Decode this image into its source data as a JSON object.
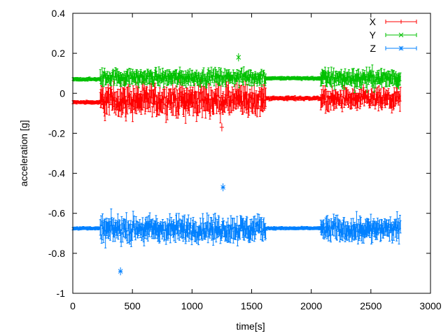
{
  "chart_data": {
    "type": "scatter",
    "style": "errorbars",
    "xlabel": "time[s]",
    "ylabel": "acceleration [g]",
    "xlim": [
      0,
      3000
    ],
    "ylim": [
      -1,
      0.4
    ],
    "xticks": [
      "0",
      "500",
      "1000",
      "1500",
      "2000",
      "2500",
      "3000"
    ],
    "yticks": [
      "-1",
      "-0.8",
      "-0.6",
      "-0.4",
      "-0.2",
      "0",
      "0.2",
      "0.4"
    ],
    "xtick_values": [
      0,
      500,
      1000,
      1500,
      2000,
      2500,
      3000
    ],
    "ytick_values": [
      -1,
      -0.8,
      -0.6,
      -0.4,
      -0.2,
      0,
      0.2,
      0.4
    ],
    "grid": false,
    "legend": "top-right",
    "x_range_of_data": [
      0,
      2750
    ],
    "series": [
      {
        "name": "X",
        "color": "#ff0000",
        "marker": "plus",
        "segments": [
          {
            "t": [
              0,
              230
            ],
            "mean": -0.045,
            "spread": 0.005
          },
          {
            "t": [
              230,
              1620
            ],
            "mean": -0.035,
            "spread": 0.06
          },
          {
            "t": [
              1620,
              2080
            ],
            "mean": -0.025,
            "spread": 0.006
          },
          {
            "t": [
              2080,
              2750
            ],
            "mean": -0.03,
            "spread": 0.04
          }
        ],
        "outliers": [
          {
            "t": 1250,
            "y": -0.17
          }
        ]
      },
      {
        "name": "Y",
        "color": "#00c000",
        "marker": "cross",
        "segments": [
          {
            "t": [
              0,
              230
            ],
            "mean": 0.07,
            "spread": 0.005
          },
          {
            "t": [
              230,
              1620
            ],
            "mean": 0.08,
            "spread": 0.03
          },
          {
            "t": [
              1620,
              2080
            ],
            "mean": 0.075,
            "spread": 0.005
          },
          {
            "t": [
              2080,
              2750
            ],
            "mean": 0.075,
            "spread": 0.035
          }
        ],
        "outliers": [
          {
            "t": 1390,
            "y": 0.18
          }
        ]
      },
      {
        "name": "Z",
        "color": "#0080ff",
        "marker": "star",
        "segments": [
          {
            "t": [
              0,
              230
            ],
            "mean": -0.675,
            "spread": 0.004
          },
          {
            "t": [
              230,
              1620
            ],
            "mean": -0.68,
            "spread": 0.05
          },
          {
            "t": [
              1620,
              2080
            ],
            "mean": -0.675,
            "spread": 0.004
          },
          {
            "t": [
              2080,
              2750
            ],
            "mean": -0.68,
            "spread": 0.045
          }
        ],
        "outliers": [
          {
            "t": 400,
            "y": -0.89
          },
          {
            "t": 1260,
            "y": -0.47
          }
        ]
      }
    ]
  }
}
